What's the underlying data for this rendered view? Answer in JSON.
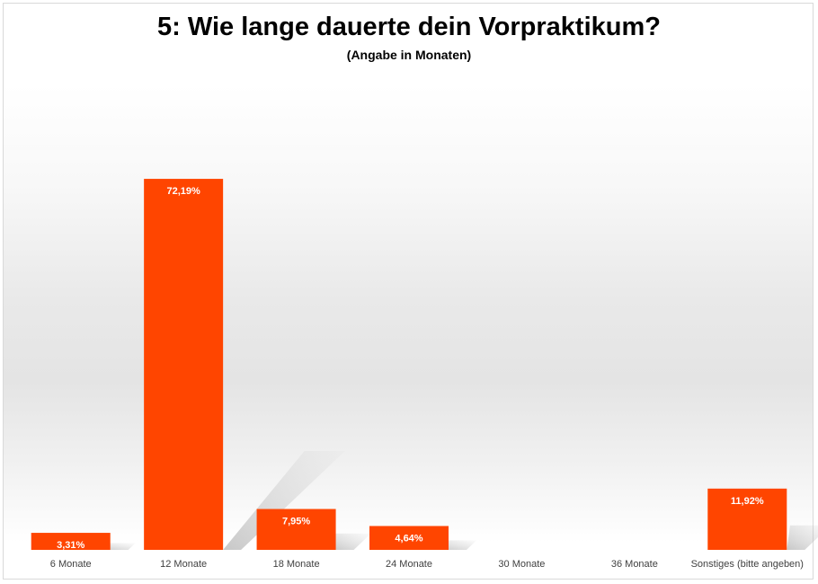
{
  "chart_data": {
    "type": "bar",
    "title": "5: Wie lange dauerte dein Vorpraktikum?",
    "subtitle": "(Angabe in Monaten)",
    "categories": [
      "6 Monate",
      "12 Monate",
      "18 Monate",
      "24 Monate",
      "30 Monate",
      "36 Monate",
      "Sonstiges (bitte angeben)"
    ],
    "values": [
      3.31,
      72.19,
      7.95,
      4.64,
      0,
      0,
      11.92
    ],
    "data_labels": [
      "3,31%",
      "72,19%",
      "7,95%",
      "4,64%",
      "",
      "",
      "11,92%"
    ],
    "xlabel": "",
    "ylabel": "",
    "ylim": [
      0,
      100
    ],
    "grid": false,
    "legend": "none",
    "bar_color": "#ff4500"
  }
}
